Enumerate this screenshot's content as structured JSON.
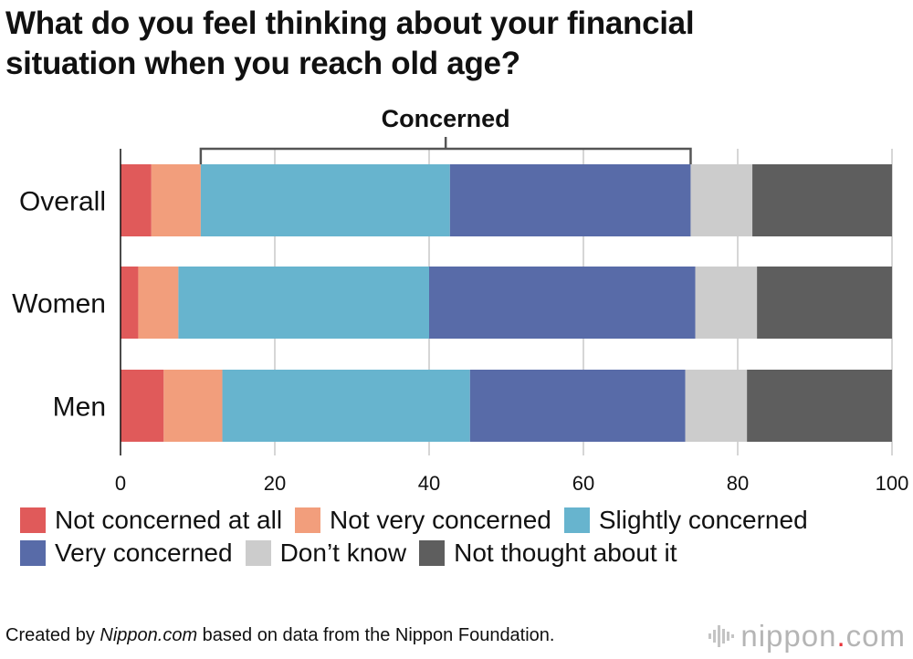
{
  "title_line1": "What do you feel thinking about your financial",
  "title_line2": "situation when you reach old age?",
  "chart_data": {
    "type": "bar",
    "orientation": "horizontal",
    "stacked": true,
    "title": "What do you feel thinking about your financial situation when you reach old age?",
    "categories": [
      "Overall",
      "Women",
      "Men"
    ],
    "series": [
      {
        "name": "Not concerned at all",
        "color": "#e05a5a",
        "values": [
          4.0,
          2.3,
          5.6
        ]
      },
      {
        "name": "Not very concerned",
        "color": "#f29e7c",
        "values": [
          6.4,
          5.2,
          7.6
        ]
      },
      {
        "name": "Slightly concerned",
        "color": "#67b4ce",
        "values": [
          32.3,
          32.5,
          32.1
        ]
      },
      {
        "name": "Very concerned",
        "color": "#586ba8",
        "values": [
          31.2,
          34.5,
          27.9
        ]
      },
      {
        "name": "Don’t know",
        "color": "#cccccc",
        "values": [
          8.0,
          8.0,
          8.0
        ]
      },
      {
        "name": "Not thought about it",
        "color": "#5e5e5e",
        "values": [
          18.1,
          17.5,
          18.8
        ]
      }
    ],
    "xlim": [
      0,
      100
    ],
    "xticks": [
      0,
      20,
      40,
      60,
      80,
      100
    ],
    "xunit": "(%)",
    "grid": true,
    "annotation": {
      "label": "Concerned",
      "from": 10.4,
      "to": 73.9
    }
  },
  "footer": {
    "prefix": "Created by ",
    "source_italic": "Nippon.com",
    "suffix": " based on data from the Nippon Foundation."
  },
  "logo": {
    "part1": "nippon",
    "dot": ".",
    "part2": "com"
  }
}
